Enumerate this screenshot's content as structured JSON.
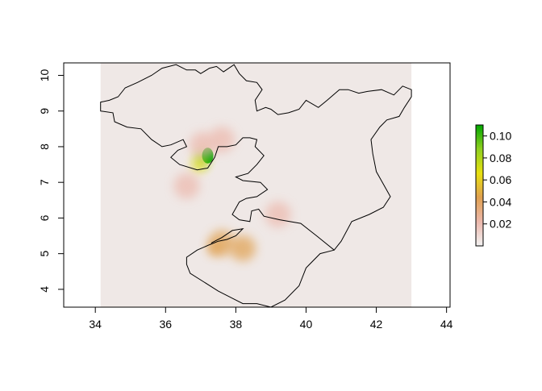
{
  "chart_data": {
    "type": "heatmap",
    "title": "",
    "xlabel": "",
    "ylabel": "",
    "xlim": [
      33.1,
      44.1
    ],
    "ylim": [
      3.5,
      10.35
    ],
    "x_ticks": [
      34,
      36,
      38,
      40,
      42,
      44
    ],
    "y_ticks": [
      4,
      5,
      6,
      7,
      8,
      9,
      10
    ],
    "raster_extent": {
      "x": [
        34.15,
        43.0
      ],
      "y": [
        3.5,
        10.35
      ]
    },
    "background_color": "#efe8e6",
    "legend": {
      "placement": "right",
      "ticks": [
        0.02,
        0.04,
        0.06,
        0.08,
        0.1
      ],
      "range": [
        0.0,
        0.11
      ],
      "colors": [
        "#f2f2f2",
        "#ecb8ac",
        "#e0a050",
        "#e8e010",
        "#90d020",
        "#00a600"
      ]
    },
    "hotspots": [
      {
        "x": 37.05,
        "y": 7.65,
        "value": 0.06
      },
      {
        "x": 37.2,
        "y": 7.75,
        "value": 0.11
      },
      {
        "x": 36.95,
        "y": 7.5,
        "value": 0.04
      },
      {
        "x": 37.05,
        "y": 8.05,
        "value": 0.012
      },
      {
        "x": 37.6,
        "y": 8.2,
        "value": 0.01
      },
      {
        "x": 37.4,
        "y": 5.15,
        "value": 0.03
      },
      {
        "x": 37.6,
        "y": 5.3,
        "value": 0.015
      },
      {
        "x": 38.2,
        "y": 5.15,
        "value": 0.02
      },
      {
        "x": 39.2,
        "y": 6.1,
        "value": 0.006
      },
      {
        "x": 36.6,
        "y": 6.9,
        "value": 0.005
      }
    ],
    "boundary": [
      [
        34.15,
        9.0
      ],
      [
        34.5,
        8.95
      ],
      [
        34.55,
        8.7
      ],
      [
        34.9,
        8.55
      ],
      [
        35.3,
        8.5
      ],
      [
        35.6,
        8.2
      ],
      [
        35.9,
        8.0
      ],
      [
        36.15,
        8.05
      ],
      [
        36.5,
        8.2
      ],
      [
        36.6,
        8.0
      ],
      [
        36.35,
        7.9
      ],
      [
        36.15,
        7.7
      ],
      [
        36.4,
        7.5
      ],
      [
        36.9,
        7.35
      ],
      [
        37.2,
        7.4
      ],
      [
        37.4,
        7.7
      ],
      [
        37.5,
        8.0
      ],
      [
        37.75,
        8.0
      ],
      [
        38.0,
        8.05
      ],
      [
        38.2,
        8.25
      ],
      [
        38.4,
        8.25
      ],
      [
        38.6,
        8.2
      ],
      [
        38.55,
        8.0
      ],
      [
        38.8,
        7.75
      ],
      [
        38.6,
        7.5
      ],
      [
        38.35,
        7.25
      ],
      [
        38.0,
        7.15
      ],
      [
        38.2,
        7.05
      ],
      [
        38.7,
        7.0
      ],
      [
        38.9,
        6.8
      ],
      [
        38.6,
        6.6
      ],
      [
        38.3,
        6.55
      ],
      [
        38.1,
        6.45
      ],
      [
        37.9,
        6.1
      ],
      [
        38.1,
        5.95
      ],
      [
        38.4,
        5.9
      ],
      [
        38.45,
        6.2
      ],
      [
        38.65,
        6.25
      ],
      [
        38.8,
        6.05
      ],
      [
        39.25,
        5.95
      ],
      [
        39.85,
        5.85
      ],
      [
        40.3,
        5.5
      ],
      [
        40.8,
        5.1
      ],
      [
        41.0,
        5.35
      ],
      [
        41.3,
        5.9
      ],
      [
        41.8,
        6.1
      ],
      [
        42.2,
        6.3
      ],
      [
        42.4,
        6.6
      ],
      [
        42.2,
        6.95
      ],
      [
        42.0,
        7.3
      ],
      [
        41.9,
        7.8
      ],
      [
        41.85,
        8.2
      ],
      [
        42.1,
        8.55
      ],
      [
        42.3,
        8.75
      ],
      [
        42.65,
        8.85
      ],
      [
        42.8,
        9.1
      ],
      [
        43.0,
        9.4
      ],
      [
        43.0,
        9.6
      ],
      [
        42.75,
        9.7
      ],
      [
        42.5,
        9.45
      ],
      [
        42.15,
        9.6
      ],
      [
        41.75,
        9.55
      ],
      [
        41.5,
        9.5
      ],
      [
        41.2,
        9.6
      ],
      [
        40.95,
        9.6
      ],
      [
        40.6,
        9.3
      ],
      [
        40.35,
        9.1
      ],
      [
        40.0,
        9.3
      ],
      [
        39.8,
        9.05
      ],
      [
        39.5,
        8.95
      ],
      [
        39.2,
        8.9
      ],
      [
        39.0,
        9.05
      ],
      [
        38.85,
        9.1
      ],
      [
        38.6,
        9.0
      ],
      [
        38.55,
        9.3
      ],
      [
        38.75,
        9.6
      ],
      [
        38.6,
        9.8
      ],
      [
        38.3,
        9.85
      ],
      [
        38.1,
        10.05
      ],
      [
        37.95,
        10.3
      ],
      [
        37.65,
        10.1
      ],
      [
        37.45,
        10.25
      ],
      [
        37.25,
        10.2
      ],
      [
        37.0,
        10.05
      ],
      [
        36.85,
        10.15
      ],
      [
        36.6,
        10.15
      ],
      [
        36.3,
        10.3
      ],
      [
        35.9,
        10.2
      ],
      [
        35.6,
        10.0
      ],
      [
        35.2,
        9.8
      ],
      [
        34.85,
        9.65
      ],
      [
        34.65,
        9.4
      ],
      [
        34.4,
        9.3
      ],
      [
        34.15,
        9.25
      ]
    ],
    "inland_boundary": [
      [
        37.3,
        5.3
      ],
      [
        37.6,
        5.45
      ],
      [
        37.9,
        5.65
      ],
      [
        38.2,
        5.7
      ],
      [
        38.0,
        5.5
      ],
      [
        37.75,
        5.4
      ],
      [
        37.5,
        5.35
      ],
      [
        37.25,
        5.25
      ],
      [
        36.9,
        5.1
      ],
      [
        36.6,
        4.9
      ],
      [
        36.6,
        4.7
      ],
      [
        36.7,
        4.45
      ],
      [
        37.1,
        4.2
      ],
      [
        37.5,
        3.95
      ],
      [
        37.9,
        3.75
      ],
      [
        38.2,
        3.6
      ],
      [
        38.6,
        3.6
      ],
      [
        39.0,
        3.5
      ],
      [
        39.4,
        3.7
      ],
      [
        39.8,
        4.1
      ],
      [
        40.0,
        4.6
      ],
      [
        40.4,
        5.0
      ],
      [
        40.8,
        5.1
      ]
    ]
  }
}
